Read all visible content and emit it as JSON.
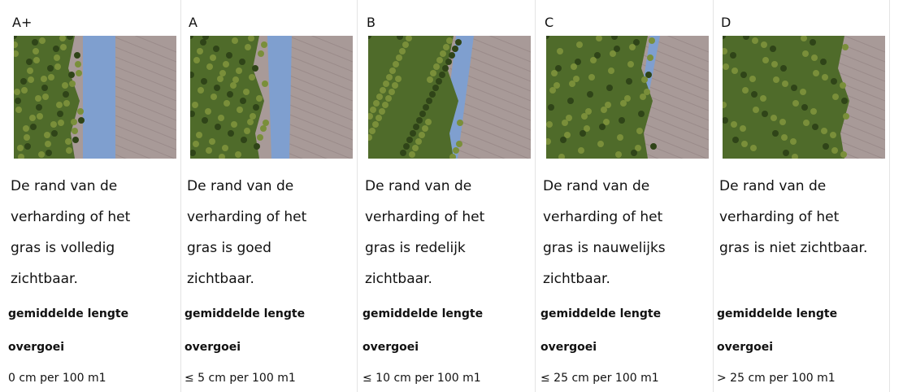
{
  "columns": [
    {
      "grade": "A+",
      "description": [
        "De rand van de",
        "verharding of het",
        "gras is volledig",
        "zichtbaar."
      ],
      "label": [
        "gemiddelde lengte",
        "overgoei"
      ],
      "measure": "0 cm per 100 m1"
    },
    {
      "grade": "A",
      "description": [
        "De rand van de",
        "verharding of het",
        "gras is goed",
        "zichtbaar."
      ],
      "label": [
        "gemiddelde lengte",
        "overgoei"
      ],
      "measure": "≤ 5 cm per 100 m1"
    },
    {
      "grade": "B",
      "description": [
        "De rand van de",
        "verharding of het",
        "gras is redelijk",
        "zichtbaar."
      ],
      "label": [
        "gemiddelde lengte",
        "overgoei"
      ],
      "measure": "≤ 10 cm per 100 m1"
    },
    {
      "grade": "C",
      "description": [
        "De rand van de",
        "verharding of het",
        "gras is nauwelijks",
        "zichtbaar."
      ],
      "label": [
        "gemiddelde lengte",
        "overgoei"
      ],
      "measure": "≤ 25 cm per 100 m1"
    },
    {
      "grade": "D",
      "description": [
        "De rand van de",
        "verharding of het",
        "gras is niet zichtbaar."
      ],
      "label": [
        "gemiddelde lengte",
        "overgoei"
      ],
      "measure": "> 25 cm per 100 m1"
    }
  ]
}
